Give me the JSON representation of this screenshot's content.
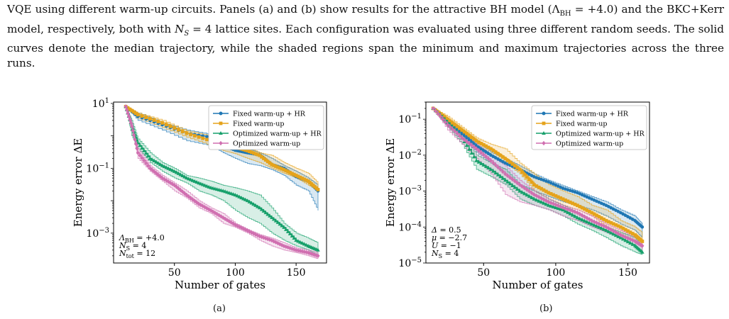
{
  "caption": {
    "text_1": "VQE using different warm-up circuits. Panels (a) and (b) show results for the attractive BH model (Λ",
    "text_1_sub": "BH",
    "text_2": " = +4.0) and the BKC+Kerr model, respectively, both with ",
    "ns_symbol": "N",
    "ns_sub": "S",
    "text_3": " = 4 lattice sites. Each configuration was evaluated using three different random seeds. The solid curves denote the median trajectory, while the shaded regions span the minimum and maximum trajectories across the three runs."
  },
  "colors": {
    "fixed_hr": "#1f77b4",
    "fixed": "#e5a31b",
    "optimized_hr": "#17a06b",
    "optimized": "#d06fb0"
  },
  "panels": [
    {
      "label": "(a)",
      "chart_data": {
        "type": "line",
        "xlabel": "Number of gates",
        "ylabel": "Energy error ΔE",
        "yscale": "log",
        "xlim": [
          0,
          175
        ],
        "ylim": [
          0.00012,
          11
        ],
        "xticks": [
          50,
          100,
          150
        ],
        "yticks": [
          {
            "value": 10,
            "base": "10",
            "exp": "1"
          },
          {
            "value": 0.1,
            "base": "10",
            "exp": "−1"
          },
          {
            "value": 0.001,
            "base": "10",
            "exp": "−3"
          }
        ],
        "legend": "top-right",
        "annotations": [
          "Λ_BH = +4.0",
          "N_S = 4",
          "N_tot = 12"
        ],
        "series": [
          {
            "name": "Fixed warm-up + HR",
            "color_key": "fixed_hr",
            "marker": "circle",
            "x": [
              10,
              20,
              40,
              60,
              80,
              90,
              100,
              110,
              120,
              130,
              140,
              150,
              160,
              168
            ],
            "y": [
              8,
              4,
              2.2,
              1.2,
              0.9,
              0.5,
              0.36,
              0.3,
              0.26,
              0.13,
              0.1,
              0.055,
              0.04,
              0.02
            ],
            "lo": [
              8,
              3,
              1.5,
              0.7,
              0.5,
              0.3,
              0.2,
              0.14,
              0.12,
              0.09,
              0.06,
              0.03,
              0.02,
              0.005
            ],
            "hi": [
              8,
              5,
              2.5,
              1.5,
              1.1,
              0.7,
              0.5,
              0.4,
              0.3,
              0.2,
              0.12,
              0.08,
              0.05,
              0.03
            ]
          },
          {
            "name": "Fixed warm-up",
            "color_key": "fixed",
            "marker": "square",
            "x": [
              10,
              20,
              40,
              60,
              80,
              90,
              100,
              110,
              120,
              130,
              140,
              150,
              160,
              168
            ],
            "y": [
              8,
              4.5,
              2.5,
              1.2,
              0.7,
              0.5,
              0.45,
              0.35,
              0.25,
              0.13,
              0.09,
              0.06,
              0.04,
              0.022
            ],
            "lo": [
              8,
              3.5,
              1.8,
              0.9,
              0.5,
              0.35,
              0.28,
              0.2,
              0.15,
              0.1,
              0.07,
              0.05,
              0.03,
              0.02
            ],
            "hi": [
              8,
              5,
              3,
              1.4,
              1,
              0.7,
              0.55,
              0.45,
              0.3,
              0.25,
              0.15,
              0.1,
              0.07,
              0.035
            ]
          },
          {
            "name": "Optimized warm-up + HR",
            "color_key": "optimized_hr",
            "marker": "triangle",
            "x": [
              10,
              15,
              20,
              30,
              40,
              50,
              60,
              70,
              80,
              90,
              100,
              110,
              120,
              130,
              140,
              150,
              160,
              168
            ],
            "y": [
              8,
              2,
              0.6,
              0.2,
              0.12,
              0.08,
              0.05,
              0.035,
              0.025,
              0.02,
              0.015,
              0.01,
              0.006,
              0.003,
              0.0015,
              0.0006,
              0.0004,
              0.0003
            ],
            "lo": [
              8,
              1,
              0.4,
              0.15,
              0.08,
              0.05,
              0.035,
              0.02,
              0.015,
              0.01,
              0.005,
              0.003,
              0.002,
              0.001,
              0.0006,
              0.0004,
              0.0003,
              0.0002
            ],
            "hi": [
              8,
              3,
              0.8,
              0.3,
              0.15,
              0.1,
              0.06,
              0.05,
              0.04,
              0.03,
              0.025,
              0.02,
              0.015,
              0.006,
              0.002,
              0.001,
              0.0007,
              0.0005
            ]
          },
          {
            "name": "Optimized warm-up",
            "color_key": "optimized",
            "marker": "diamond",
            "x": [
              10,
              15,
              20,
              30,
              40,
              50,
              60,
              70,
              80,
              90,
              100,
              110,
              120,
              130,
              140,
              150,
              160,
              168
            ],
            "y": [
              8,
              2,
              0.3,
              0.1,
              0.05,
              0.03,
              0.015,
              0.008,
              0.005,
              0.003,
              0.0018,
              0.0012,
              0.0008,
              0.0006,
              0.0004,
              0.0003,
              0.00025,
              0.0002
            ],
            "lo": [
              8,
              1.5,
              0.2,
              0.08,
              0.04,
              0.02,
              0.012,
              0.006,
              0.004,
              0.002,
              0.0015,
              0.001,
              0.0006,
              0.0004,
              0.0003,
              0.00025,
              0.0002,
              0.00016
            ],
            "hi": [
              8,
              2.5,
              0.4,
              0.12,
              0.06,
              0.035,
              0.02,
              0.01,
              0.006,
              0.004,
              0.002,
              0.0013,
              0.0009,
              0.0007,
              0.0005,
              0.00035,
              0.0003,
              0.00025
            ]
          }
        ]
      }
    },
    {
      "label": "(b)",
      "chart_data": {
        "type": "line",
        "xlabel": "Number of gates",
        "ylabel": "Energy error ΔE",
        "yscale": "log",
        "xlim": [
          10,
          165
        ],
        "ylim": [
          1e-05,
          0.3
        ],
        "xticks": [
          50,
          100,
          150
        ],
        "yticks": [
          {
            "value": 0.1,
            "base": "10",
            "exp": "−1"
          },
          {
            "value": 0.01,
            "base": "10",
            "exp": "−2"
          },
          {
            "value": 0.001,
            "base": "10",
            "exp": "−3"
          },
          {
            "value": 0.0001,
            "base": "10",
            "exp": "−4"
          },
          {
            "value": 1e-05,
            "base": "10",
            "exp": "−5"
          }
        ],
        "legend": "top-right",
        "annotations": [
          "Δ = 0.5",
          "μ = −2.7",
          "U = −1",
          "N_S = 4"
        ],
        "series": [
          {
            "name": "Fixed warm-up + HR",
            "color_key": "fixed_hr",
            "marker": "circle",
            "x": [
              15,
              25,
              35,
              45,
              55,
              65,
              75,
              85,
              95,
              105,
              115,
              125,
              135,
              145,
              155,
              160
            ],
            "y": [
              0.2,
              0.09,
              0.04,
              0.018,
              0.01,
              0.006,
              0.004,
              0.0025,
              0.0018,
              0.0012,
              0.0009,
              0.0006,
              0.0004,
              0.00025,
              0.00015,
              0.0001
            ],
            "lo": [
              0.2,
              0.07,
              0.03,
              0.012,
              0.006,
              0.003,
              0.0015,
              0.001,
              0.0007,
              0.0005,
              0.0004,
              0.0003,
              0.0002,
              0.00012,
              8e-05,
              5e-05
            ],
            "hi": [
              0.2,
              0.1,
              0.05,
              0.025,
              0.012,
              0.008,
              0.005,
              0.003,
              0.002,
              0.0014,
              0.001,
              0.0007,
              0.0005,
              0.0003,
              0.0002,
              0.00012
            ]
          },
          {
            "name": "Fixed warm-up",
            "color_key": "fixed",
            "marker": "square",
            "x": [
              15,
              25,
              35,
              45,
              55,
              65,
              75,
              85,
              95,
              105,
              115,
              125,
              135,
              145,
              155,
              160
            ],
            "y": [
              0.2,
              0.1,
              0.05,
              0.025,
              0.015,
              0.008,
              0.004,
              0.0015,
              0.0009,
              0.0006,
              0.0004,
              0.00025,
              0.00015,
              0.0001,
              6e-05,
              4e-05
            ],
            "lo": [
              0.2,
              0.08,
              0.04,
              0.02,
              0.01,
              0.006,
              0.003,
              0.001,
              0.0006,
              0.0004,
              0.0003,
              0.0002,
              0.0001,
              6e-05,
              4e-05,
              3e-05
            ],
            "hi": [
              0.2,
              0.12,
              0.06,
              0.03,
              0.02,
              0.015,
              0.006,
              0.003,
              0.0015,
              0.001,
              0.0007,
              0.0004,
              0.0003,
              0.00015,
              0.0001,
              7e-05
            ]
          },
          {
            "name": "Optimized warm-up + HR",
            "color_key": "optimized_hr",
            "marker": "triangle",
            "x": [
              15,
              25,
              35,
              45,
              55,
              65,
              75,
              85,
              95,
              105,
              115,
              125,
              135,
              145,
              155,
              160
            ],
            "y": [
              0.2,
              0.08,
              0.03,
              0.007,
              0.004,
              0.002,
              0.001,
              0.0006,
              0.0004,
              0.0003,
              0.00018,
              0.00012,
              8e-05,
              5e-05,
              3e-05,
              2e-05
            ],
            "lo": [
              0.2,
              0.06,
              0.02,
              0.004,
              0.0025,
              0.0015,
              0.0006,
              0.0004,
              0.0003,
              0.0002,
              0.00012,
              8e-05,
              5e-05,
              3e-05,
              2e-05,
              1.7e-05
            ],
            "hi": [
              0.2,
              0.1,
              0.04,
              0.01,
              0.006,
              0.004,
              0.0015,
              0.001,
              0.0006,
              0.0004,
              0.00025,
              0.00015,
              0.0001,
              7e-05,
              5e-05,
              3e-05
            ]
          },
          {
            "name": "Optimized warm-up",
            "color_key": "optimized",
            "marker": "diamond",
            "x": [
              15,
              25,
              35,
              45,
              55,
              65,
              75,
              85,
              95,
              105,
              115,
              125,
              135,
              145,
              155,
              160
            ],
            "y": [
              0.2,
              0.07,
              0.03,
              0.015,
              0.007,
              0.003,
              0.0015,
              0.0008,
              0.0005,
              0.00035,
              0.00025,
              0.00015,
              0.0001,
              6e-05,
              4e-05,
              3e-05
            ],
            "lo": [
              0.2,
              0.05,
              0.02,
              0.008,
              0.003,
              0.0008,
              0.0005,
              0.0004,
              0.0003,
              0.0002,
              0.00015,
              0.0001,
              7e-05,
              5e-05,
              3e-05,
              2e-05
            ],
            "hi": [
              0.2,
              0.09,
              0.04,
              0.02,
              0.01,
              0.005,
              0.002,
              0.001,
              0.0006,
              0.0004,
              0.0003,
              0.0002,
              0.00012,
              8e-05,
              5e-05,
              4e-05
            ]
          }
        ]
      }
    }
  ]
}
